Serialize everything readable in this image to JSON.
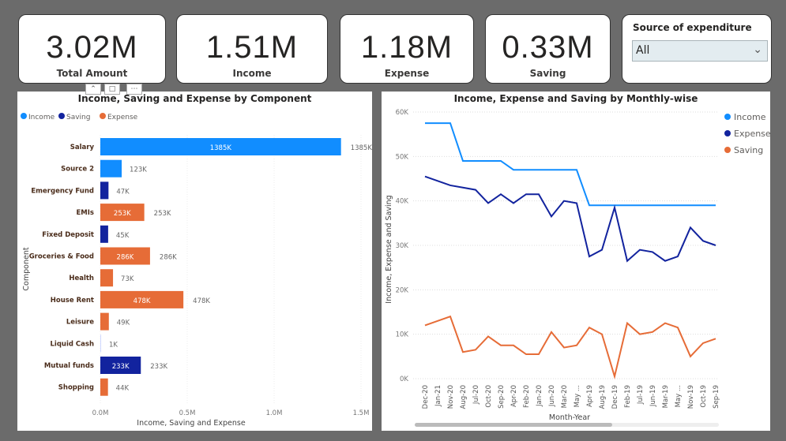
{
  "kpis": [
    {
      "value": "3.02M",
      "label": "Total Amount"
    },
    {
      "value": "1.51M",
      "label": "Income"
    },
    {
      "value": "1.18M",
      "label": "Expense"
    },
    {
      "value": "0.33M",
      "label": "Saving"
    }
  ],
  "slicer": {
    "title": "Source of expenditure",
    "selected": "All"
  },
  "colors": {
    "income": "#118dff",
    "saving": "#12239e",
    "expense": "#e66c37"
  },
  "chart_data": [
    {
      "type": "bar",
      "orientation": "horizontal",
      "title": "Income, Saving and Expense by Component",
      "xlabel": "Income, Saving and Expense",
      "ylabel": "Component",
      "legend": [
        "Income",
        "Saving",
        "Expense"
      ],
      "legend_position": "top-left",
      "xlim": [
        0,
        1.5
      ],
      "xticks": [
        "0.0M",
        "0.5M",
        "1.0M",
        "1.5M"
      ],
      "categories": [
        "Salary",
        "Source 2",
        "Emergency Fund",
        "EMIs",
        "Fixed Deposit",
        "Groceries & Food",
        "Health",
        "House Rent",
        "Leisure",
        "Liquid Cash",
        "Mutual funds",
        "Shopping"
      ],
      "values_k": [
        1385,
        123,
        47,
        253,
        45,
        286,
        73,
        478,
        49,
        1,
        233,
        44
      ],
      "labels": [
        "1385K",
        "123K",
        "47K",
        "253K",
        "45K",
        "286K",
        "73K",
        "478K",
        "49K",
        "1K",
        "233K",
        "44K"
      ],
      "series_of": [
        "Income",
        "Income",
        "Saving",
        "Expense",
        "Saving",
        "Expense",
        "Expense",
        "Expense",
        "Expense",
        "Saving",
        "Saving",
        "Expense"
      ]
    },
    {
      "type": "line",
      "title": "Income, Expense and Saving by Monthly-wise",
      "xlabel": "Month-Year",
      "ylabel": "Income, Expense and Saving",
      "ylim": [
        0,
        60
      ],
      "yticks": [
        "0K",
        "10K",
        "20K",
        "30K",
        "40K",
        "50K",
        "60K"
      ],
      "legend_position": "top-right",
      "x": [
        "Dec-20",
        "Jan-21",
        "Nov-20",
        "Aug-20",
        "Jul-20",
        "Oct-20",
        "Sep-20",
        "Apr-20",
        "Feb-20",
        "Jan-20",
        "Jun-20",
        "Mar-20",
        "May ...",
        "Apr-19",
        "Aug-19",
        "Dec-19",
        "Feb-19",
        "Jul-19",
        "Jun-19",
        "Mar-19",
        "May ...",
        "Nov-19",
        "Oct-19",
        "Sep-19"
      ],
      "series": [
        {
          "name": "Income",
          "values": [
            57.5,
            57.5,
            57.5,
            49,
            49,
            49,
            49,
            47,
            47,
            47,
            47,
            47,
            47,
            39,
            39,
            39,
            39,
            39,
            39,
            39,
            39,
            39,
            39,
            39
          ]
        },
        {
          "name": "Expense",
          "values": [
            45.5,
            44.5,
            43.5,
            43,
            42.5,
            39.5,
            41.5,
            39.5,
            41.5,
            41.5,
            36.5,
            40,
            39.5,
            27.5,
            29,
            38.5,
            26.5,
            29,
            28.5,
            26.5,
            27.5,
            34,
            31,
            30
          ]
        },
        {
          "name": "Saving",
          "values": [
            12,
            13,
            14,
            6,
            6.5,
            9.5,
            7.5,
            7.5,
            5.5,
            5.5,
            10.5,
            7,
            7.5,
            11.5,
            10,
            0.5,
            12.5,
            10,
            10.5,
            12.5,
            11.5,
            5,
            8,
            9
          ]
        }
      ]
    }
  ]
}
